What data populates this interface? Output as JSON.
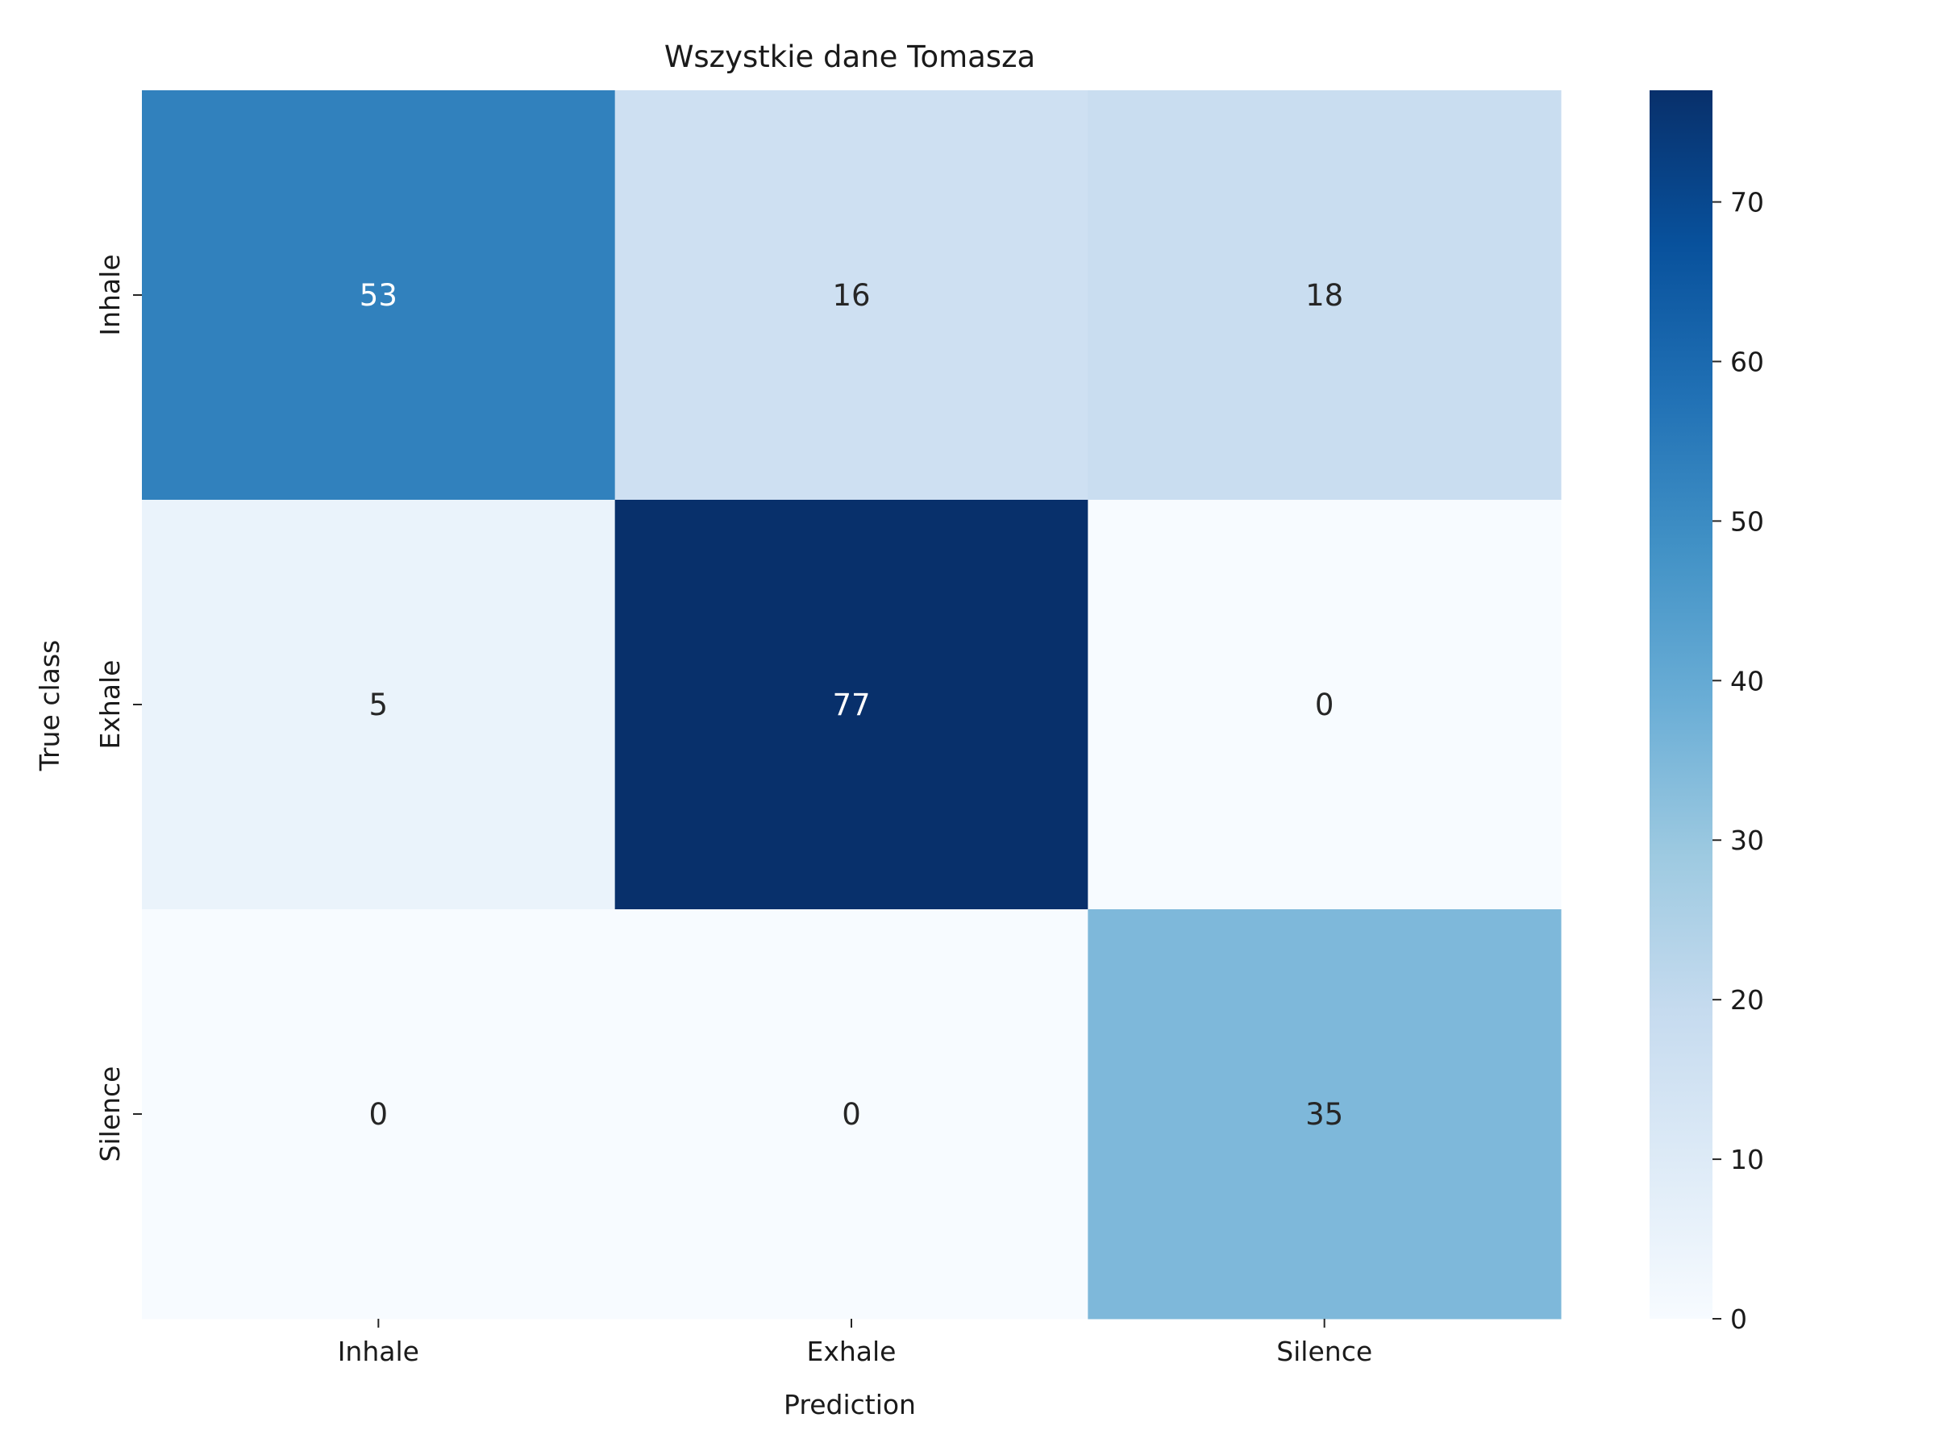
{
  "chart_data": {
    "type": "heatmap",
    "title": "Wszystkie dane Tomasza",
    "xlabel": "Prediction",
    "ylabel": "True class",
    "x_categories": [
      "Inhale",
      "Exhale",
      "Silence"
    ],
    "y_categories": [
      "Inhale",
      "Exhale",
      "Silence"
    ],
    "values": [
      [
        53,
        16,
        18
      ],
      [
        5,
        77,
        0
      ],
      [
        0,
        0,
        35
      ]
    ],
    "colorscale": "Blues",
    "colorbar": {
      "range": [
        0,
        77
      ],
      "ticks": [
        0,
        10,
        20,
        30,
        40,
        50,
        60,
        70
      ]
    }
  }
}
